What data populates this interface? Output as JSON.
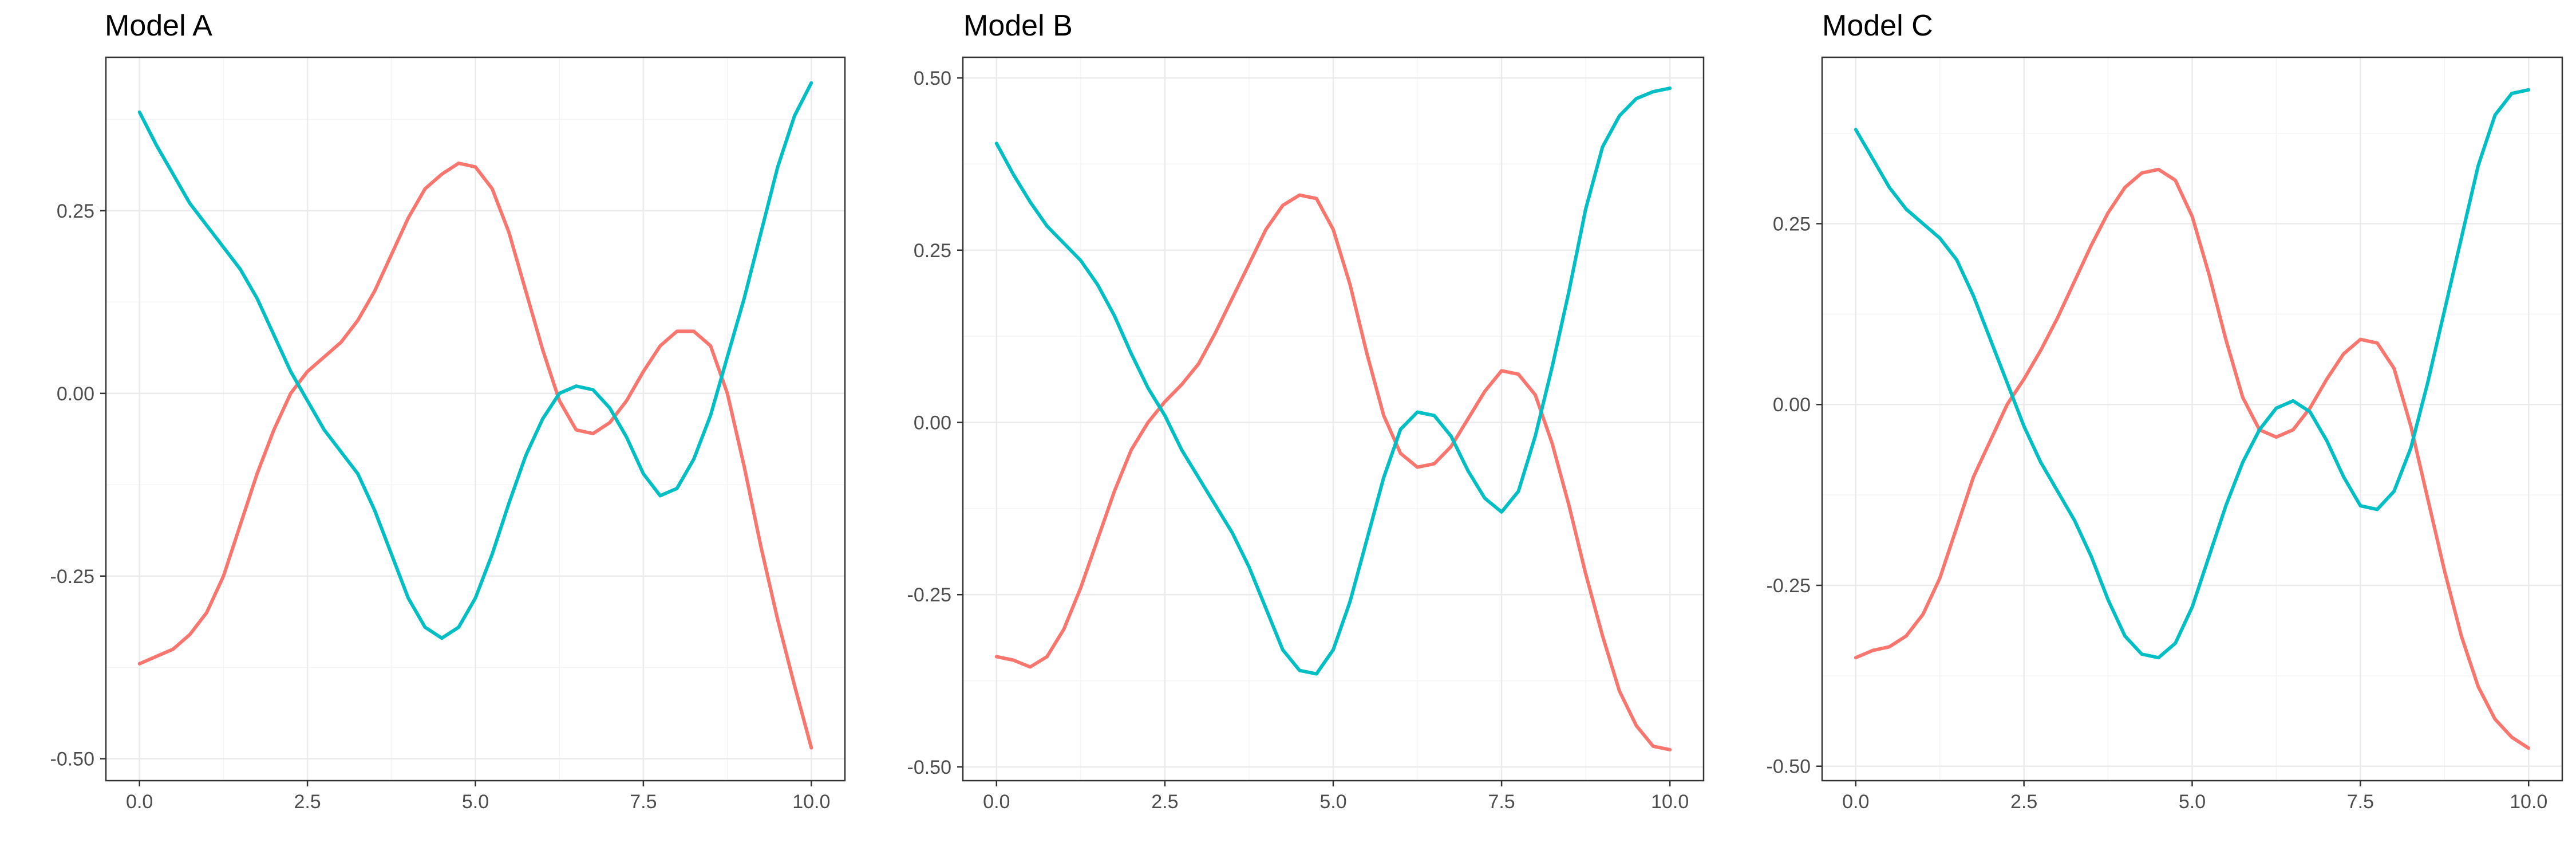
{
  "chart_data": [
    {
      "type": "line",
      "title": "Model A",
      "xlabel": "",
      "ylabel": "",
      "xlim": [
        -0.5,
        10.5
      ],
      "ylim": [
        -0.53,
        0.46
      ],
      "xticks": [
        0.0,
        2.5,
        5.0,
        7.5,
        10.0
      ],
      "xtick_labels": [
        "0.0",
        "2.5",
        "5.0",
        "7.5",
        "10.0"
      ],
      "yticks": [
        -0.5,
        -0.25,
        0.0,
        0.25
      ],
      "ytick_labels": [
        "-0.50",
        "-0.25",
        "0.00",
        "0.25"
      ],
      "grid": true,
      "series": [
        {
          "color": "#F8766D",
          "x": [
            0.0,
            0.25,
            0.5,
            0.75,
            1.0,
            1.25,
            1.5,
            1.75,
            2.0,
            2.25,
            2.5,
            2.75,
            3.0,
            3.25,
            3.5,
            3.75,
            4.0,
            4.25,
            4.5,
            4.75,
            5.0,
            5.25,
            5.5,
            5.75,
            6.0,
            6.25,
            6.5,
            6.75,
            7.0,
            7.25,
            7.5,
            7.75,
            8.0,
            8.25,
            8.5,
            8.75,
            9.0,
            9.25,
            9.5,
            9.75,
            10.0
          ],
          "values": [
            -0.37,
            -0.36,
            -0.35,
            -0.33,
            -0.3,
            -0.25,
            -0.18,
            -0.11,
            -0.05,
            0.0,
            0.03,
            0.05,
            0.07,
            0.1,
            0.14,
            0.19,
            0.24,
            0.28,
            0.3,
            0.315,
            0.31,
            0.28,
            0.22,
            0.14,
            0.06,
            -0.01,
            -0.05,
            -0.055,
            -0.04,
            -0.01,
            0.03,
            0.065,
            0.085,
            0.085,
            0.065,
            0.0,
            -0.1,
            -0.21,
            -0.31,
            -0.4,
            -0.485
          ]
        },
        {
          "color": "#00BFC4",
          "x": [
            0.0,
            0.25,
            0.5,
            0.75,
            1.0,
            1.25,
            1.5,
            1.75,
            2.0,
            2.25,
            2.5,
            2.75,
            3.0,
            3.25,
            3.5,
            3.75,
            4.0,
            4.25,
            4.5,
            4.75,
            5.0,
            5.25,
            5.5,
            5.75,
            6.0,
            6.25,
            6.5,
            6.75,
            7.0,
            7.25,
            7.5,
            7.75,
            8.0,
            8.25,
            8.5,
            8.75,
            9.0,
            9.25,
            9.5,
            9.75,
            10.0
          ],
          "values": [
            0.385,
            0.34,
            0.3,
            0.26,
            0.23,
            0.2,
            0.17,
            0.13,
            0.08,
            0.03,
            -0.01,
            -0.05,
            -0.08,
            -0.11,
            -0.16,
            -0.22,
            -0.28,
            -0.32,
            -0.335,
            -0.32,
            -0.28,
            -0.22,
            -0.15,
            -0.085,
            -0.035,
            0.0,
            0.01,
            0.005,
            -0.02,
            -0.06,
            -0.11,
            -0.14,
            -0.13,
            -0.09,
            -0.03,
            0.05,
            0.13,
            0.22,
            0.31,
            0.38,
            0.425
          ]
        }
      ]
    },
    {
      "type": "line",
      "title": "Model B",
      "xlabel": "",
      "ylabel": "",
      "xlim": [
        -0.5,
        10.5
      ],
      "ylim": [
        -0.52,
        0.53
      ],
      "xticks": [
        0.0,
        2.5,
        5.0,
        7.5,
        10.0
      ],
      "xtick_labels": [
        "0.0",
        "2.5",
        "5.0",
        "7.5",
        "10.0"
      ],
      "yticks": [
        -0.5,
        -0.25,
        0.0,
        0.25,
        0.5
      ],
      "ytick_labels": [
        "-0.50",
        "-0.25",
        "0.00",
        "0.25",
        "0.50"
      ],
      "grid": true,
      "series": [
        {
          "color": "#F8766D",
          "x": [
            0.0,
            0.25,
            0.5,
            0.75,
            1.0,
            1.25,
            1.5,
            1.75,
            2.0,
            2.25,
            2.5,
            2.75,
            3.0,
            3.25,
            3.5,
            3.75,
            4.0,
            4.25,
            4.5,
            4.75,
            5.0,
            5.25,
            5.5,
            5.75,
            6.0,
            6.25,
            6.5,
            6.75,
            7.0,
            7.25,
            7.5,
            7.75,
            8.0,
            8.25,
            8.5,
            8.75,
            9.0,
            9.25,
            9.5,
            9.75,
            10.0
          ],
          "values": [
            -0.34,
            -0.345,
            -0.355,
            -0.34,
            -0.3,
            -0.24,
            -0.17,
            -0.1,
            -0.04,
            0.0,
            0.03,
            0.055,
            0.085,
            0.13,
            0.18,
            0.23,
            0.28,
            0.315,
            0.33,
            0.325,
            0.28,
            0.2,
            0.1,
            0.01,
            -0.045,
            -0.065,
            -0.06,
            -0.035,
            0.005,
            0.045,
            0.075,
            0.07,
            0.04,
            -0.03,
            -0.12,
            -0.22,
            -0.31,
            -0.39,
            -0.44,
            -0.47,
            -0.475
          ]
        },
        {
          "color": "#00BFC4",
          "x": [
            0.0,
            0.25,
            0.5,
            0.75,
            1.0,
            1.25,
            1.5,
            1.75,
            2.0,
            2.25,
            2.5,
            2.75,
            3.0,
            3.25,
            3.5,
            3.75,
            4.0,
            4.25,
            4.5,
            4.75,
            5.0,
            5.25,
            5.5,
            5.75,
            6.0,
            6.25,
            6.5,
            6.75,
            7.0,
            7.25,
            7.5,
            7.75,
            8.0,
            8.25,
            8.5,
            8.75,
            9.0,
            9.25,
            9.5,
            9.75,
            10.0
          ],
          "values": [
            0.405,
            0.36,
            0.32,
            0.285,
            0.26,
            0.235,
            0.2,
            0.155,
            0.1,
            0.05,
            0.01,
            -0.04,
            -0.08,
            -0.12,
            -0.16,
            -0.21,
            -0.27,
            -0.33,
            -0.36,
            -0.365,
            -0.33,
            -0.26,
            -0.17,
            -0.08,
            -0.01,
            0.015,
            0.01,
            -0.02,
            -0.07,
            -0.11,
            -0.13,
            -0.1,
            -0.02,
            0.08,
            0.19,
            0.31,
            0.4,
            0.445,
            0.47,
            0.48,
            0.485
          ]
        }
      ]
    },
    {
      "type": "line",
      "title": "Model C",
      "xlabel": "",
      "ylabel": "",
      "xlim": [
        -0.5,
        10.5
      ],
      "ylim": [
        -0.52,
        0.48
      ],
      "xticks": [
        0.0,
        2.5,
        5.0,
        7.5,
        10.0
      ],
      "xtick_labels": [
        "0.0",
        "2.5",
        "5.0",
        "7.5",
        "10.0"
      ],
      "yticks": [
        -0.5,
        -0.25,
        0.0,
        0.25
      ],
      "ytick_labels": [
        "-0.50",
        "-0.25",
        "0.00",
        "0.25"
      ],
      "grid": true,
      "series": [
        {
          "color": "#F8766D",
          "x": [
            0.0,
            0.25,
            0.5,
            0.75,
            1.0,
            1.25,
            1.5,
            1.75,
            2.0,
            2.25,
            2.5,
            2.75,
            3.0,
            3.25,
            3.5,
            3.75,
            4.0,
            4.25,
            4.5,
            4.75,
            5.0,
            5.25,
            5.5,
            5.75,
            6.0,
            6.25,
            6.5,
            6.75,
            7.0,
            7.25,
            7.5,
            7.75,
            8.0,
            8.25,
            8.5,
            8.75,
            9.0,
            9.25,
            9.5,
            9.75,
            10.0
          ],
          "values": [
            -0.35,
            -0.34,
            -0.335,
            -0.32,
            -0.29,
            -0.24,
            -0.17,
            -0.1,
            -0.05,
            0.0,
            0.035,
            0.075,
            0.12,
            0.17,
            0.22,
            0.265,
            0.3,
            0.32,
            0.325,
            0.31,
            0.26,
            0.18,
            0.09,
            0.01,
            -0.035,
            -0.045,
            -0.035,
            -0.005,
            0.035,
            0.07,
            0.09,
            0.085,
            0.05,
            -0.03,
            -0.13,
            -0.23,
            -0.32,
            -0.39,
            -0.435,
            -0.46,
            -0.475
          ]
        },
        {
          "color": "#00BFC4",
          "x": [
            0.0,
            0.25,
            0.5,
            0.75,
            1.0,
            1.25,
            1.5,
            1.75,
            2.0,
            2.25,
            2.5,
            2.75,
            3.0,
            3.25,
            3.5,
            3.75,
            4.0,
            4.25,
            4.5,
            4.75,
            5.0,
            5.25,
            5.5,
            5.75,
            6.0,
            6.25,
            6.5,
            6.75,
            7.0,
            7.25,
            7.5,
            7.75,
            8.0,
            8.25,
            8.5,
            8.75,
            9.0,
            9.25,
            9.5,
            9.75,
            10.0
          ],
          "values": [
            0.38,
            0.34,
            0.3,
            0.27,
            0.25,
            0.23,
            0.2,
            0.15,
            0.09,
            0.03,
            -0.03,
            -0.08,
            -0.12,
            -0.16,
            -0.21,
            -0.27,
            -0.32,
            -0.345,
            -0.35,
            -0.33,
            -0.28,
            -0.21,
            -0.14,
            -0.08,
            -0.035,
            -0.005,
            0.005,
            -0.01,
            -0.05,
            -0.1,
            -0.14,
            -0.145,
            -0.12,
            -0.06,
            0.03,
            0.13,
            0.23,
            0.33,
            0.4,
            0.43,
            0.435
          ]
        }
      ]
    }
  ]
}
